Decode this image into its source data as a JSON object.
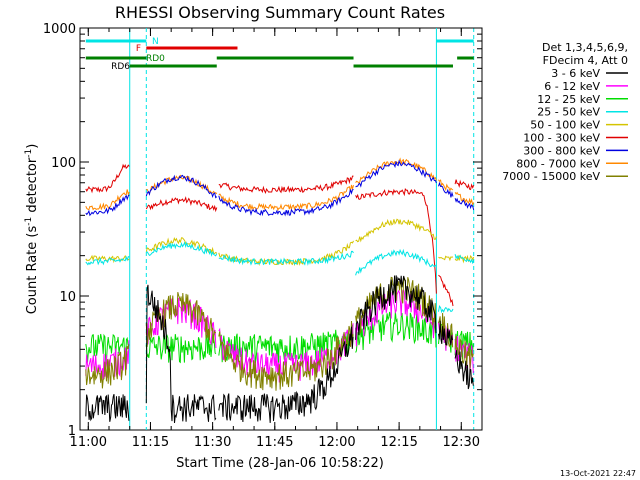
{
  "chart_data": {
    "type": "line",
    "title": "RHESSI Observing Summary Count Rates",
    "xlabel": "Start Time (28-Jan-06 10:58:22)",
    "ylabel_main": "Count Rate (s",
    "ylabel_sup1": "-1",
    "ylabel_mid": " detector",
    "ylabel_sup2": "-1",
    "ylabel_end": ")",
    "yscale": "log",
    "ylim": [
      1,
      1000
    ],
    "xlim": [
      "10:58",
      "12:35"
    ],
    "x_ticks": [
      "11:00",
      "11:15",
      "11:30",
      "11:45",
      "12:00",
      "12:15",
      "12:30"
    ],
    "y_ticks": [
      "1",
      "10",
      "100",
      "1000"
    ],
    "legend_header": [
      "Det 1,3,4,5,6,9,",
      "FDecim 4, Att 0"
    ],
    "footer_date": "13-Oct-2021 22:47",
    "flags": [
      {
        "label": "N",
        "color": "#00e5e5"
      },
      {
        "label": "F",
        "color": "#e00000"
      },
      {
        "label": "RD0",
        "color": "#008000"
      },
      {
        "label": "RD6",
        "color": "#008000"
      }
    ],
    "series": [
      {
        "name": "3 - 6 keV",
        "color": "#000000"
      },
      {
        "name": "6 - 12 keV",
        "color": "#ff00ff"
      },
      {
        "name": "12 - 25 keV",
        "color": "#00dd00"
      },
      {
        "name": "25 - 50 keV",
        "color": "#00e5e5"
      },
      {
        "name": "50 - 100 keV",
        "color": "#d4c400"
      },
      {
        "name": "100 - 300 keV",
        "color": "#e00000"
      },
      {
        "name": "300 - 800 keV",
        "color": "#0000e0"
      },
      {
        "name": "800 - 7000 keV",
        "color": "#ff8800"
      },
      {
        "name": "7000 - 15000 keV",
        "color": "#808000"
      }
    ]
  }
}
